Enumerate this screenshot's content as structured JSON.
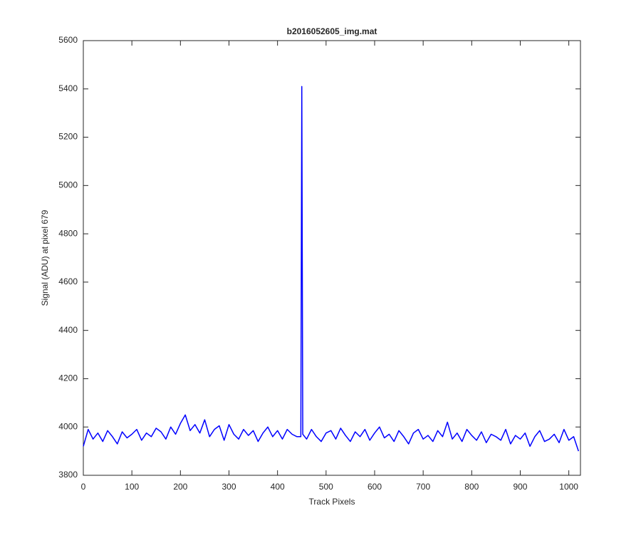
{
  "chart_data": {
    "type": "line",
    "title": "b2016052605_img.mat",
    "xlabel": "Track Pixels",
    "ylabel": "Signal (ADU) at pixel 679",
    "x": [
      0,
      10,
      20,
      30,
      40,
      50,
      60,
      70,
      80,
      90,
      100,
      110,
      120,
      130,
      140,
      150,
      160,
      170,
      180,
      190,
      200,
      210,
      220,
      230,
      240,
      250,
      260,
      270,
      280,
      290,
      300,
      310,
      320,
      330,
      340,
      350,
      360,
      370,
      380,
      390,
      400,
      410,
      420,
      430,
      440,
      448,
      450,
      452,
      460,
      470,
      480,
      490,
      500,
      510,
      520,
      530,
      540,
      550,
      560,
      570,
      580,
      590,
      600,
      610,
      620,
      630,
      640,
      650,
      660,
      670,
      680,
      690,
      700,
      710,
      720,
      730,
      740,
      750,
      760,
      770,
      780,
      790,
      800,
      810,
      820,
      830,
      840,
      850,
      860,
      870,
      880,
      890,
      900,
      910,
      920,
      930,
      940,
      950,
      960,
      970,
      980,
      990,
      1000,
      1010,
      1020
    ],
    "series": [
      {
        "name": "signal",
        "color": "#0000ff",
        "values": [
          3920,
          3990,
          3950,
          3975,
          3940,
          3985,
          3960,
          3930,
          3980,
          3955,
          3970,
          3990,
          3945,
          3975,
          3960,
          3995,
          3980,
          3950,
          4000,
          3970,
          4015,
          4050,
          3985,
          4010,
          3975,
          4030,
          3960,
          3990,
          4005,
          3945,
          4010,
          3970,
          3950,
          3990,
          3965,
          3985,
          3940,
          3975,
          4000,
          3960,
          3985,
          3950,
          3990,
          3970,
          3960,
          3960,
          5410,
          3970,
          3950,
          3990,
          3960,
          3940,
          3975,
          3985,
          3950,
          3995,
          3965,
          3940,
          3980,
          3960,
          3990,
          3945,
          3975,
          4000,
          3955,
          3970,
          3940,
          3985,
          3960,
          3930,
          3975,
          3990,
          3950,
          3965,
          3940,
          3985,
          3960,
          4020,
          3950,
          3975,
          3940,
          3990,
          3965,
          3945,
          3980,
          3935,
          3970,
          3960,
          3945,
          3990,
          3930,
          3965,
          3950,
          3975,
          3920,
          3960,
          3985,
          3940,
          3950,
          3970,
          3935,
          3990,
          3945,
          3960,
          3900
        ]
      }
    ],
    "xlim": [
      0,
      1024
    ],
    "xticks": [
      0,
      100,
      200,
      300,
      400,
      500,
      600,
      700,
      800,
      900,
      1000
    ],
    "ylim": [
      3800,
      5600
    ],
    "yticks": [
      3800,
      4000,
      4200,
      4400,
      4600,
      4800,
      5000,
      5200,
      5400,
      5600
    ],
    "grid": false
  }
}
